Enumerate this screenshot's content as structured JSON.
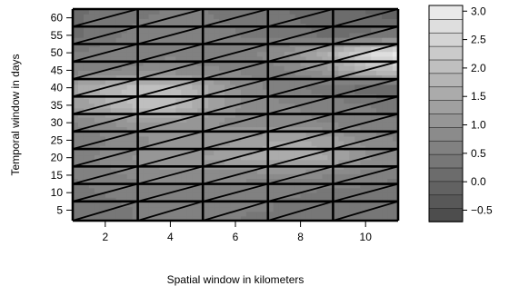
{
  "chart_data": {
    "type": "heatmap",
    "title": "",
    "xlabel": "Spatial window in kilometers",
    "ylabel": "Temporal window in days",
    "x_ticks": [
      2,
      4,
      6,
      8,
      10
    ],
    "y_ticks": [
      5,
      10,
      15,
      20,
      25,
      30,
      35,
      40,
      45,
      50,
      55,
      60
    ],
    "xlim": [
      1,
      11
    ],
    "ylim": [
      2,
      62.5
    ],
    "x_grid": [
      1,
      3,
      5,
      7,
      9,
      11
    ],
    "y_grid": [
      2,
      7.5,
      12.5,
      17.5,
      22.5,
      27.5,
      32.5,
      37.5,
      42.5,
      47.5,
      52.5,
      57.5,
      62.5
    ],
    "colorbar": {
      "min": -0.7,
      "max": 3.1,
      "ticks": [
        -0.5,
        0.0,
        0.5,
        1.0,
        1.5,
        2.0,
        2.5,
        3.0
      ],
      "tick_labels": [
        "−0.5",
        "0.0",
        "0.5",
        "1.0",
        "1.5",
        "2.0",
        "2.5",
        "3.0"
      ],
      "levels": 16
    },
    "x": [
      1,
      2,
      3,
      4,
      5,
      6,
      7,
      8,
      9,
      10,
      11
    ],
    "y": [
      2.5,
      5,
      10,
      15,
      20,
      25,
      30,
      35,
      40,
      45,
      50,
      55,
      62.5
    ],
    "z": [
      [
        0.3,
        0.4,
        0.5,
        0.5,
        0.5,
        0.5,
        0.4,
        0.4,
        0.3,
        0.3,
        0.3
      ],
      [
        0.3,
        0.4,
        0.5,
        0.6,
        0.5,
        0.5,
        0.5,
        0.4,
        0.3,
        0.3,
        0.3
      ],
      [
        0.4,
        0.5,
        0.6,
        0.6,
        0.6,
        0.6,
        0.5,
        0.5,
        0.4,
        0.4,
        0.4
      ],
      [
        0.5,
        0.6,
        0.8,
        0.8,
        0.8,
        0.8,
        0.8,
        0.8,
        0.7,
        0.6,
        0.5
      ],
      [
        0.6,
        0.8,
        1.0,
        1.2,
        1.2,
        1.4,
        1.6,
        1.6,
        1.4,
        1.0,
        0.8
      ],
      [
        0.5,
        0.7,
        0.9,
        1.0,
        1.0,
        1.2,
        1.4,
        1.5,
        1.3,
        0.9,
        0.7
      ],
      [
        0.7,
        0.9,
        1.1,
        1.2,
        1.0,
        0.9,
        0.9,
        0.8,
        0.7,
        0.6,
        0.5
      ],
      [
        1.2,
        1.6,
        2.0,
        2.0,
        1.5,
        1.0,
        0.8,
        0.7,
        0.6,
        0.5,
        0.4
      ],
      [
        1.4,
        1.8,
        2.1,
        2.1,
        1.6,
        1.0,
        0.7,
        0.5,
        0.3,
        0.1,
        0.0
      ],
      [
        0.6,
        0.7,
        0.8,
        0.8,
        0.8,
        0.7,
        0.6,
        0.8,
        1.2,
        1.8,
        2.1
      ],
      [
        0.5,
        0.6,
        0.6,
        0.7,
        0.6,
        0.6,
        0.8,
        1.2,
        1.8,
        2.6,
        3.0
      ],
      [
        0.2,
        0.4,
        0.6,
        0.7,
        0.6,
        0.5,
        0.4,
        0.3,
        0.2,
        0.3,
        0.4
      ],
      [
        0.2,
        0.3,
        0.4,
        0.5,
        0.5,
        0.4,
        0.3,
        0.2,
        0.1,
        0.0,
        -0.2
      ]
    ]
  }
}
